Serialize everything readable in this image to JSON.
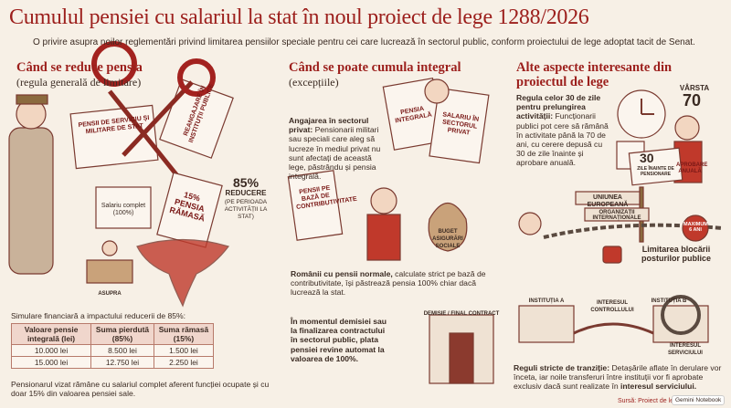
{
  "header": {
    "title": "Cumulul pensiei cu salariul la stat în noul proiect de lege 1288/2026",
    "subtitle": "O privire asupra noilor reglementări privind limitarea pensiilor speciale pentru cei care lucrează în sectorul public, conform proiectului de lege adoptat tacit de Senat."
  },
  "col1": {
    "heading": "Când se reduce pensia",
    "subheading": "(regula generală de limitare)",
    "labels": [
      "PENSII DE SERVICIU ȘI MILITARE DE STAT",
      "REANGAJARE ÎN INSTITUȚII PUBLICE",
      "Salariu complet (100%)",
      "15% PENSIA RĂMASĂ",
      "85%",
      "REDUCERE",
      "(PE PERIOADA ACTIVITĂȚII LA STAT)",
      "ASUPRA"
    ],
    "table": {
      "caption": "Simulare financiară a impactului reducerii de 85%:",
      "headers": [
        "Valoare pensie integrală (lei)",
        "Suma pierdută (85%)",
        "Suma rămasă (15%)"
      ],
      "rows": [
        [
          "10.000 lei",
          "8.500 lei",
          "1.500 lei"
        ],
        [
          "15.000 lei",
          "12.750 lei",
          "2.250 lei"
        ]
      ]
    },
    "note": "Pensionarul vizat rămâne cu salariul complet aferent funcției ocupate și cu doar 15% din valoarea pensiei sale."
  },
  "col2": {
    "heading": "Când se poate cumula integral",
    "subheading": "(excepțiile)",
    "private": {
      "lead": "Angajarea în sectorul privat:",
      "text": "Pensionarii militari sau speciali care aleg să lucreze în mediul privat nu sunt afectați de această lege, păstrându și pensia integrală."
    },
    "labels": [
      "PENSIA INTEGRALĂ",
      "SALARIU ÎN SECTORUL PRIVAT",
      "PENSII PE BAZĂ DE CONTRIBUTIVITATE",
      "BUGET ASIGURĂRI SOCIALE",
      "DEMISIE / FINAL CONTRACT"
    ],
    "contributive": {
      "lead": "Românii cu pensii normale,",
      "text": "calculate strict pe bază de contributivitate, își păstrează pensia 100% chiar dacă lucrează la stat."
    },
    "resignation": "În momentul demisiei sau la finalizarea contractului în sectorul public, plata pensiei revine automat la valoarea de 100%."
  },
  "col3": {
    "heading": "Alte aspecte interesante din proiectul de lege",
    "extension": {
      "lead": "Regula celor 30 de zile pentru prelungirea activității:",
      "text": "Funcționarii publici pot cere să rămână în activitate până la 70 de ani, cu cerere depusă cu 30 de zile înainte și aprobare anuală."
    },
    "labels": [
      "VÂRSTA",
      "70",
      "30",
      "ZILE ÎNAINTE DE PENSIONARE",
      "APROBARE ANUALĂ",
      "UNIUNEA EUROPEANĂ",
      "ORGANIZAȚII INTERNAȚIONALE",
      "MAXIMUM 6 ANI",
      "INSTITUȚIA A",
      "INTERESUL CONTROLLULUI",
      "INSTITUȚIA B",
      "INTERESUL SERVICIULUI"
    ],
    "blocking": "Limitarea blocării posturilor publice",
    "transition": {
      "lead": "Reguli stricte de tranziție:",
      "text": "Detașările aflate în derulare vor înceta, iar noile transferuri între instituții vor fi aprobate exclusiv dacă sunt realizate în",
      "emph": "interesul serviciului."
    }
  },
  "footer": {
    "source": "Sursă: Proiect de lege",
    "badge": "Gemini Notebook"
  }
}
